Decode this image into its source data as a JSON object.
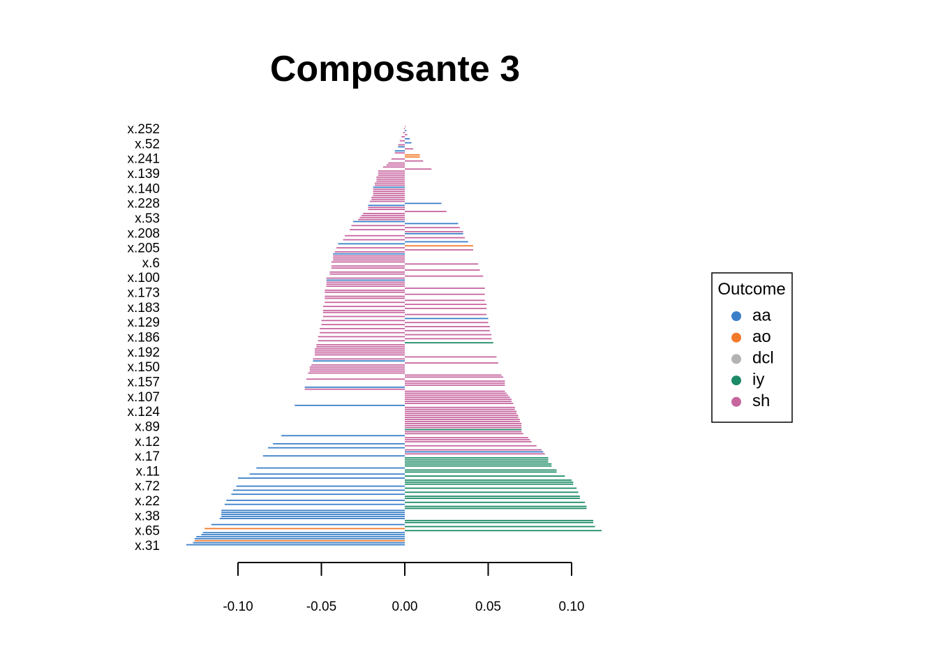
{
  "chart_data": {
    "type": "bar",
    "orientation": "horizontal",
    "title": "Composante 3",
    "xlabel": "",
    "ylabel": "",
    "xlim": [
      -0.12,
      0.12
    ],
    "x_ticks": [
      -0.1,
      -0.05,
      0.0,
      0.05,
      0.1
    ],
    "x_tick_labels": [
      "-0.10",
      "-0.05",
      "0.00",
      "0.05",
      "0.10"
    ],
    "y_tick_labels": [
      "x.252",
      "x.52",
      "x.241",
      "x.139",
      "x.140",
      "x.228",
      "x.53",
      "x.208",
      "x.205",
      "x.6",
      "x.100",
      "x.173",
      "x.183",
      "x.129",
      "x.186",
      "x.192",
      "x.150",
      "x.157",
      "x.107",
      "x.124",
      "x.89",
      "x.12",
      "x.17",
      "x.11",
      "x.72",
      "x.22",
      "x.38",
      "x.65",
      "x.31"
    ],
    "legend": {
      "title": "Outcome",
      "position": "right",
      "entries": [
        {
          "label": "aa",
          "color": "#3a7fc8"
        },
        {
          "label": "ao",
          "color": "#f27a2b"
        },
        {
          "label": "dcl",
          "color": "#b3b3b3"
        },
        {
          "label": "iy",
          "color": "#1b8a66"
        },
        {
          "label": "sh",
          "color": "#c7659f"
        }
      ]
    },
    "series_note": "bars listed top to bottom; cat = Outcome class",
    "bars": [
      {
        "v": 0.0005,
        "cat": "sh"
      },
      {
        "v": -0.0005,
        "cat": "sh"
      },
      {
        "v": 0.001,
        "cat": "aa"
      },
      {
        "v": -0.001,
        "cat": "sh"
      },
      {
        "v": 0.0015,
        "cat": "sh"
      },
      {
        "v": -0.002,
        "cat": "sh"
      },
      {
        "v": 0.003,
        "cat": "aa"
      },
      {
        "v": -0.003,
        "cat": "sh"
      },
      {
        "v": 0.004,
        "cat": "aa"
      },
      {
        "v": -0.004,
        "cat": "sh"
      },
      {
        "v": -0.004,
        "cat": "aa"
      },
      {
        "v": 0.005,
        "cat": "sh"
      },
      {
        "v": -0.006,
        "cat": "aa"
      },
      {
        "v": -0.006,
        "cat": "sh"
      },
      {
        "v": 0.009,
        "cat": "ao"
      },
      {
        "v": 0.009,
        "cat": "ao"
      },
      {
        "v": -0.008,
        "cat": "sh"
      },
      {
        "v": 0.011,
        "cat": "sh"
      },
      {
        "v": -0.01,
        "cat": "sh"
      },
      {
        "v": -0.011,
        "cat": "sh"
      },
      {
        "v": -0.013,
        "cat": "sh"
      },
      {
        "v": 0.016,
        "cat": "sh"
      },
      {
        "v": -0.016,
        "cat": "sh"
      },
      {
        "v": -0.016,
        "cat": "sh"
      },
      {
        "v": -0.016,
        "cat": "sh"
      },
      {
        "v": -0.017,
        "cat": "sh"
      },
      {
        "v": -0.017,
        "cat": "sh"
      },
      {
        "v": -0.017,
        "cat": "sh"
      },
      {
        "v": -0.018,
        "cat": "sh"
      },
      {
        "v": -0.018,
        "cat": "sh"
      },
      {
        "v": -0.019,
        "cat": "aa"
      },
      {
        "v": -0.019,
        "cat": "sh"
      },
      {
        "v": -0.019,
        "cat": "sh"
      },
      {
        "v": -0.019,
        "cat": "sh"
      },
      {
        "v": -0.019,
        "cat": "sh"
      },
      {
        "v": -0.02,
        "cat": "sh"
      },
      {
        "v": -0.02,
        "cat": "sh"
      },
      {
        "v": -0.021,
        "cat": "sh"
      },
      {
        "v": 0.022,
        "cat": "aa"
      },
      {
        "v": -0.022,
        "cat": "aa"
      },
      {
        "v": -0.022,
        "cat": "sh"
      },
      {
        "v": -0.022,
        "cat": "sh"
      },
      {
        "v": 0.025,
        "cat": "sh"
      },
      {
        "v": -0.025,
        "cat": "sh"
      },
      {
        "v": -0.026,
        "cat": "sh"
      },
      {
        "v": -0.027,
        "cat": "sh"
      },
      {
        "v": -0.028,
        "cat": "sh"
      },
      {
        "v": -0.031,
        "cat": "aa"
      },
      {
        "v": 0.032,
        "cat": "aa"
      },
      {
        "v": -0.032,
        "cat": "sh"
      },
      {
        "v": 0.033,
        "cat": "sh"
      },
      {
        "v": -0.033,
        "cat": "sh"
      },
      {
        "v": 0.035,
        "cat": "sh"
      },
      {
        "v": 0.035,
        "cat": "aa"
      },
      {
        "v": -0.036,
        "cat": "sh"
      },
      {
        "v": 0.036,
        "cat": "sh"
      },
      {
        "v": -0.037,
        "cat": "sh"
      },
      {
        "v": 0.038,
        "cat": "aa"
      },
      {
        "v": -0.04,
        "cat": "aa"
      },
      {
        "v": 0.041,
        "cat": "ao"
      },
      {
        "v": -0.041,
        "cat": "sh"
      },
      {
        "v": 0.041,
        "cat": "sh"
      },
      {
        "v": -0.042,
        "cat": "sh"
      },
      {
        "v": -0.043,
        "cat": "aa"
      },
      {
        "v": -0.043,
        "cat": "sh"
      },
      {
        "v": -0.043,
        "cat": "sh"
      },
      {
        "v": -0.043,
        "cat": "sh"
      },
      {
        "v": -0.044,
        "cat": "sh"
      },
      {
        "v": 0.044,
        "cat": "sh"
      },
      {
        "v": -0.044,
        "cat": "sh"
      },
      {
        "v": -0.044,
        "cat": "sh"
      },
      {
        "v": 0.045,
        "cat": "sh"
      },
      {
        "v": -0.045,
        "cat": "sh"
      },
      {
        "v": -0.045,
        "cat": "sh"
      },
      {
        "v": 0.047,
        "cat": "sh"
      },
      {
        "v": -0.047,
        "cat": "sh"
      },
      {
        "v": -0.047,
        "cat": "aa"
      },
      {
        "v": -0.047,
        "cat": "sh"
      },
      {
        "v": -0.047,
        "cat": "sh"
      },
      {
        "v": -0.047,
        "cat": "sh"
      },
      {
        "v": 0.048,
        "cat": "sh"
      },
      {
        "v": -0.048,
        "cat": "sh"
      },
      {
        "v": -0.048,
        "cat": "sh"
      },
      {
        "v": 0.048,
        "cat": "sh"
      },
      {
        "v": -0.048,
        "cat": "sh"
      },
      {
        "v": -0.048,
        "cat": "sh"
      },
      {
        "v": 0.048,
        "cat": "sh"
      },
      {
        "v": -0.048,
        "cat": "sh"
      },
      {
        "v": 0.049,
        "cat": "sh"
      },
      {
        "v": -0.049,
        "cat": "sh"
      },
      {
        "v": 0.049,
        "cat": "sh"
      },
      {
        "v": -0.049,
        "cat": "sh"
      },
      {
        "v": -0.049,
        "cat": "sh"
      },
      {
        "v": 0.049,
        "cat": "sh"
      },
      {
        "v": -0.049,
        "cat": "sh"
      },
      {
        "v": 0.05,
        "cat": "aa"
      },
      {
        "v": -0.05,
        "cat": "sh"
      },
      {
        "v": 0.05,
        "cat": "sh"
      },
      {
        "v": -0.05,
        "cat": "sh"
      },
      {
        "v": 0.051,
        "cat": "sh"
      },
      {
        "v": -0.051,
        "cat": "sh"
      },
      {
        "v": 0.051,
        "cat": "sh"
      },
      {
        "v": -0.051,
        "cat": "sh"
      },
      {
        "v": 0.052,
        "cat": "sh"
      },
      {
        "v": -0.052,
        "cat": "sh"
      },
      {
        "v": 0.052,
        "cat": "sh"
      },
      {
        "v": -0.052,
        "cat": "sh"
      },
      {
        "v": 0.053,
        "cat": "iy"
      },
      {
        "v": -0.053,
        "cat": "sh"
      },
      {
        "v": -0.053,
        "cat": "sh"
      },
      {
        "v": -0.054,
        "cat": "sh"
      },
      {
        "v": -0.054,
        "cat": "sh"
      },
      {
        "v": -0.054,
        "cat": "sh"
      },
      {
        "v": -0.054,
        "cat": "sh"
      },
      {
        "v": 0.055,
        "cat": "sh"
      },
      {
        "v": -0.055,
        "cat": "sh"
      },
      {
        "v": -0.055,
        "cat": "aa"
      },
      {
        "v": 0.056,
        "cat": "sh"
      },
      {
        "v": -0.056,
        "cat": "sh"
      },
      {
        "v": -0.057,
        "cat": "sh"
      },
      {
        "v": -0.057,
        "cat": "sh"
      },
      {
        "v": -0.057,
        "cat": "sh"
      },
      {
        "v": -0.058,
        "cat": "sh"
      },
      {
        "v": 0.058,
        "cat": "sh"
      },
      {
        "v": 0.059,
        "cat": "sh"
      },
      {
        "v": -0.059,
        "cat": "sh"
      },
      {
        "v": 0.06,
        "cat": "sh"
      },
      {
        "v": 0.06,
        "cat": "sh"
      },
      {
        "v": 0.06,
        "cat": "sh"
      },
      {
        "v": -0.06,
        "cat": "aa"
      },
      {
        "v": -0.06,
        "cat": "sh"
      },
      {
        "v": 0.06,
        "cat": "sh"
      },
      {
        "v": 0.061,
        "cat": "sh"
      },
      {
        "v": 0.062,
        "cat": "sh"
      },
      {
        "v": 0.063,
        "cat": "sh"
      },
      {
        "v": 0.064,
        "cat": "sh"
      },
      {
        "v": 0.064,
        "cat": "sh"
      },
      {
        "v": 0.065,
        "cat": "sh"
      },
      {
        "v": -0.066,
        "cat": "aa"
      },
      {
        "v": 0.066,
        "cat": "sh"
      },
      {
        "v": 0.066,
        "cat": "sh"
      },
      {
        "v": 0.067,
        "cat": "sh"
      },
      {
        "v": 0.067,
        "cat": "sh"
      },
      {
        "v": 0.068,
        "cat": "sh"
      },
      {
        "v": 0.068,
        "cat": "sh"
      },
      {
        "v": 0.069,
        "cat": "sh"
      },
      {
        "v": 0.069,
        "cat": "sh"
      },
      {
        "v": 0.07,
        "cat": "sh"
      },
      {
        "v": 0.07,
        "cat": "sh"
      },
      {
        "v": 0.07,
        "cat": "sh"
      },
      {
        "v": 0.07,
        "cat": "iy"
      },
      {
        "v": 0.07,
        "cat": "sh"
      },
      {
        "v": 0.071,
        "cat": "sh"
      },
      {
        "v": -0.074,
        "cat": "aa"
      },
      {
        "v": 0.074,
        "cat": "sh"
      },
      {
        "v": 0.075,
        "cat": "sh"
      },
      {
        "v": 0.076,
        "cat": "sh"
      },
      {
        "v": -0.079,
        "cat": "aa"
      },
      {
        "v": 0.079,
        "cat": "sh"
      },
      {
        "v": -0.082,
        "cat": "aa"
      },
      {
        "v": 0.082,
        "cat": "sh"
      },
      {
        "v": 0.083,
        "cat": "aa"
      },
      {
        "v": 0.084,
        "cat": "sh"
      },
      {
        "v": -0.085,
        "cat": "aa"
      },
      {
        "v": 0.086,
        "cat": "iy"
      },
      {
        "v": 0.086,
        "cat": "iy"
      },
      {
        "v": 0.086,
        "cat": "iy"
      },
      {
        "v": 0.088,
        "cat": "iy"
      },
      {
        "v": 0.088,
        "cat": "iy"
      },
      {
        "v": -0.089,
        "cat": "aa"
      },
      {
        "v": 0.091,
        "cat": "iy"
      },
      {
        "v": 0.091,
        "cat": "iy"
      },
      {
        "v": -0.093,
        "cat": "aa"
      },
      {
        "v": 0.096,
        "cat": "iy"
      },
      {
        "v": -0.1,
        "cat": "aa"
      },
      {
        "v": 0.1,
        "cat": "iy"
      },
      {
        "v": 0.101,
        "cat": "iy"
      },
      {
        "v": 0.101,
        "cat": "iy"
      },
      {
        "v": -0.101,
        "cat": "aa"
      },
      {
        "v": 0.103,
        "cat": "iy"
      },
      {
        "v": -0.103,
        "cat": "aa"
      },
      {
        "v": 0.104,
        "cat": "iy"
      },
      {
        "v": -0.104,
        "cat": "aa"
      },
      {
        "v": 0.105,
        "cat": "iy"
      },
      {
        "v": 0.105,
        "cat": "iy"
      },
      {
        "v": -0.107,
        "cat": "aa"
      },
      {
        "v": 0.108,
        "cat": "iy"
      },
      {
        "v": -0.108,
        "cat": "aa"
      },
      {
        "v": 0.109,
        "cat": "iy"
      },
      {
        "v": 0.109,
        "cat": "iy"
      },
      {
        "v": -0.11,
        "cat": "aa"
      },
      {
        "v": -0.11,
        "cat": "aa"
      },
      {
        "v": -0.11,
        "cat": "aa"
      },
      {
        "v": -0.11,
        "cat": "aa"
      },
      {
        "v": -0.111,
        "cat": "aa"
      },
      {
        "v": 0.113,
        "cat": "iy"
      },
      {
        "v": 0.113,
        "cat": "iy"
      },
      {
        "v": -0.116,
        "cat": "aa"
      },
      {
        "v": 0.114,
        "cat": "iy"
      },
      {
        "v": -0.12,
        "cat": "ao"
      },
      {
        "v": 0.118,
        "cat": "iy"
      },
      {
        "v": -0.121,
        "cat": "aa"
      },
      {
        "v": -0.122,
        "cat": "aa"
      },
      {
        "v": -0.125,
        "cat": "aa"
      },
      {
        "v": -0.126,
        "cat": "aa"
      },
      {
        "v": -0.126,
        "cat": "ao"
      },
      {
        "v": -0.127,
        "cat": "aa"
      },
      {
        "v": -0.131,
        "cat": "aa"
      }
    ]
  }
}
